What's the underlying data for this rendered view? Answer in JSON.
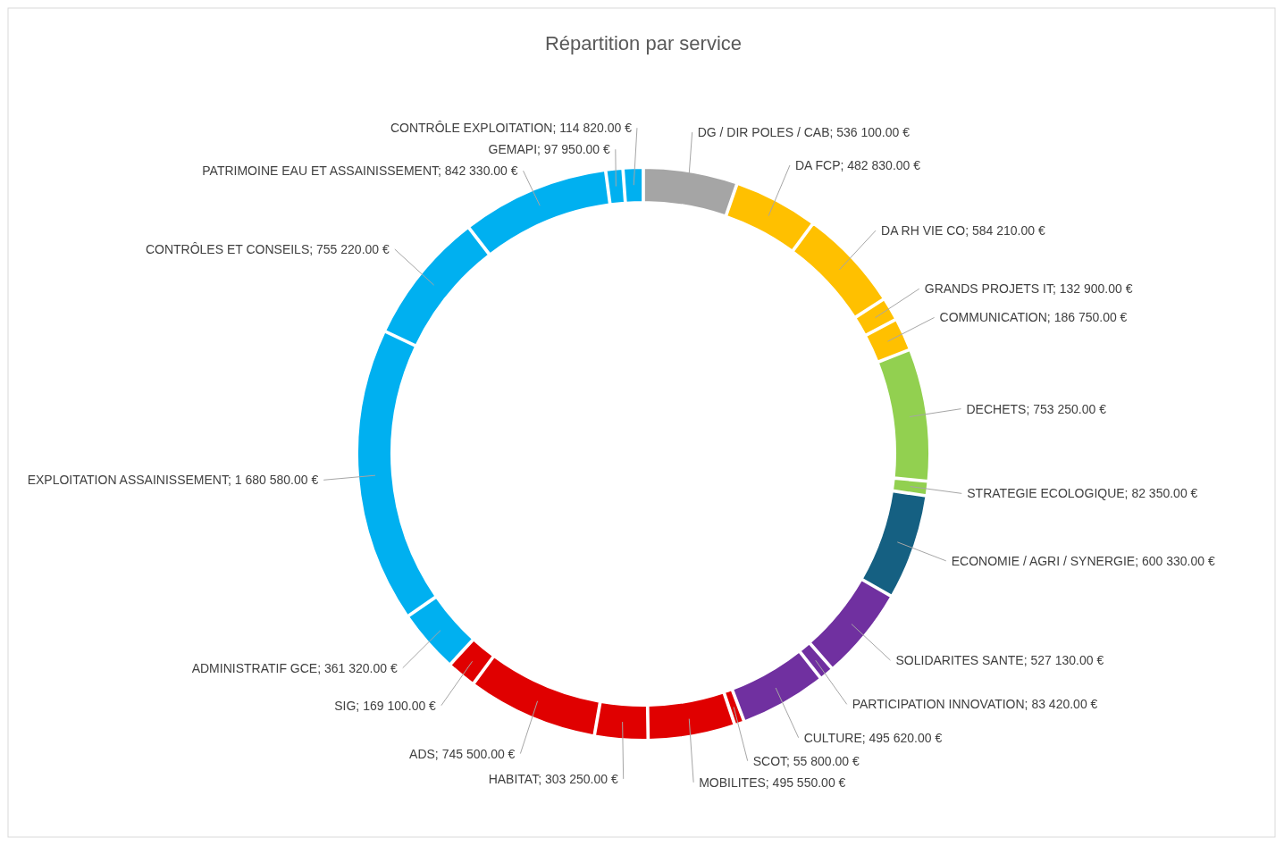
{
  "chart_data": {
    "type": "donut",
    "title": "Répartition par service",
    "categories": [
      "DG / DIR POLES / CAB",
      "DA FCP",
      "DA RH VIE CO",
      "GRANDS PROJETS IT",
      "COMMUNICATION",
      "DECHETS",
      "STRATEGIE ECOLOGIQUE",
      "ECONOMIE / AGRI / SYNERGIE",
      "SOLIDARITES SANTE",
      "PARTICIPATION INNOVATION",
      "CULTURE",
      "SCOT",
      "MOBILITES",
      "HABITAT",
      "ADS",
      "SIG",
      "ADMINISTRATIF GCE",
      "EXPLOITATION ASSAINISSEMENT",
      "CONTRÔLES ET CONSEILS",
      "PATRIMOINE EAU ET ASSAINISSEMENT",
      "GEMAPI",
      "CONTRÔLE EXPLOITATION"
    ],
    "values": [
      536100,
      482830,
      584210,
      132900,
      186750,
      753250,
      82350,
      600330,
      527130,
      83420,
      495620,
      55800,
      495550,
      303250,
      745500,
      169100,
      361320,
      1680580,
      755220,
      842330,
      97950,
      114820
    ],
    "value_labels": [
      "536 100.00 €",
      "482 830.00 €",
      "584 210.00 €",
      "132 900.00 €",
      "186 750.00 €",
      "753 250.00 €",
      "82 350.00 €",
      "600 330.00 €",
      "527 130.00 €",
      "83 420.00 €",
      "495 620.00 €",
      "55 800.00 €",
      "495 550.00 €",
      "303 250.00 €",
      "745 500.00 €",
      "169 100.00 €",
      "361 320.00 €",
      "1 680 580.00 €",
      "755 220.00 €",
      "842 330.00 €",
      "97 950.00 €",
      "114 820.00 €"
    ],
    "colors": [
      "#a5a5a5",
      "#ffc000",
      "#ffc000",
      "#ffc000",
      "#ffc000",
      "#92d050",
      "#92d050",
      "#156082",
      "#7030a0",
      "#7030a0",
      "#7030a0",
      "#e00000",
      "#e00000",
      "#e00000",
      "#e00000",
      "#e00000",
      "#00b0f0",
      "#00b0f0",
      "#00b0f0",
      "#00b0f0",
      "#00b0f0",
      "#00b0f0"
    ]
  }
}
